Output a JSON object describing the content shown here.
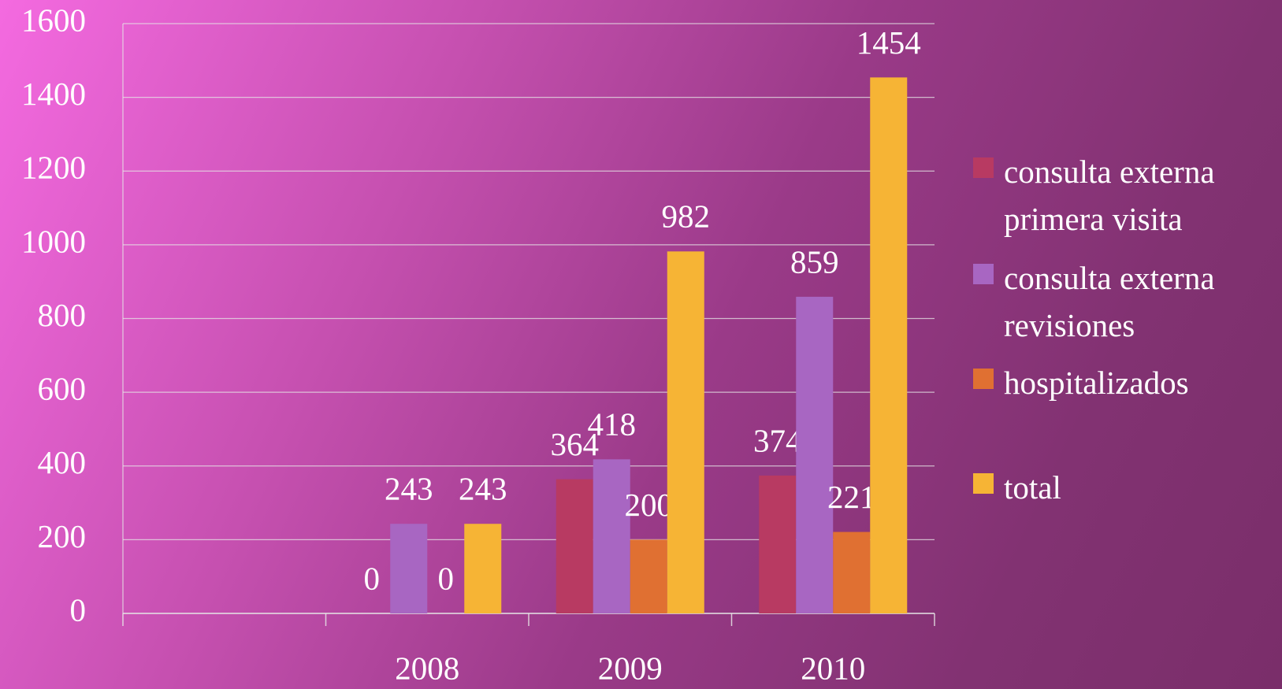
{
  "chart_data": {
    "type": "bar",
    "categories": [
      null,
      "2008",
      "2009",
      "2010"
    ],
    "series": [
      {
        "name": "consulta externa primera visita",
        "color": "#b83a62",
        "values": [
          null,
          0,
          364,
          374
        ]
      },
      {
        "name": "consulta externa revisiones",
        "color": "#a866c2",
        "values": [
          null,
          243,
          418,
          859
        ]
      },
      {
        "name": "hospitalizados",
        "color": "#e07032",
        "values": [
          null,
          0,
          200,
          221
        ]
      },
      {
        "name": "total",
        "color": "#f6b435",
        "values": [
          null,
          243,
          982,
          1454
        ]
      }
    ],
    "ylim": [
      0,
      1600
    ],
    "yticks": [
      0,
      200,
      400,
      600,
      800,
      1000,
      1200,
      1400,
      1600
    ],
    "grid": true,
    "legend": "right"
  }
}
